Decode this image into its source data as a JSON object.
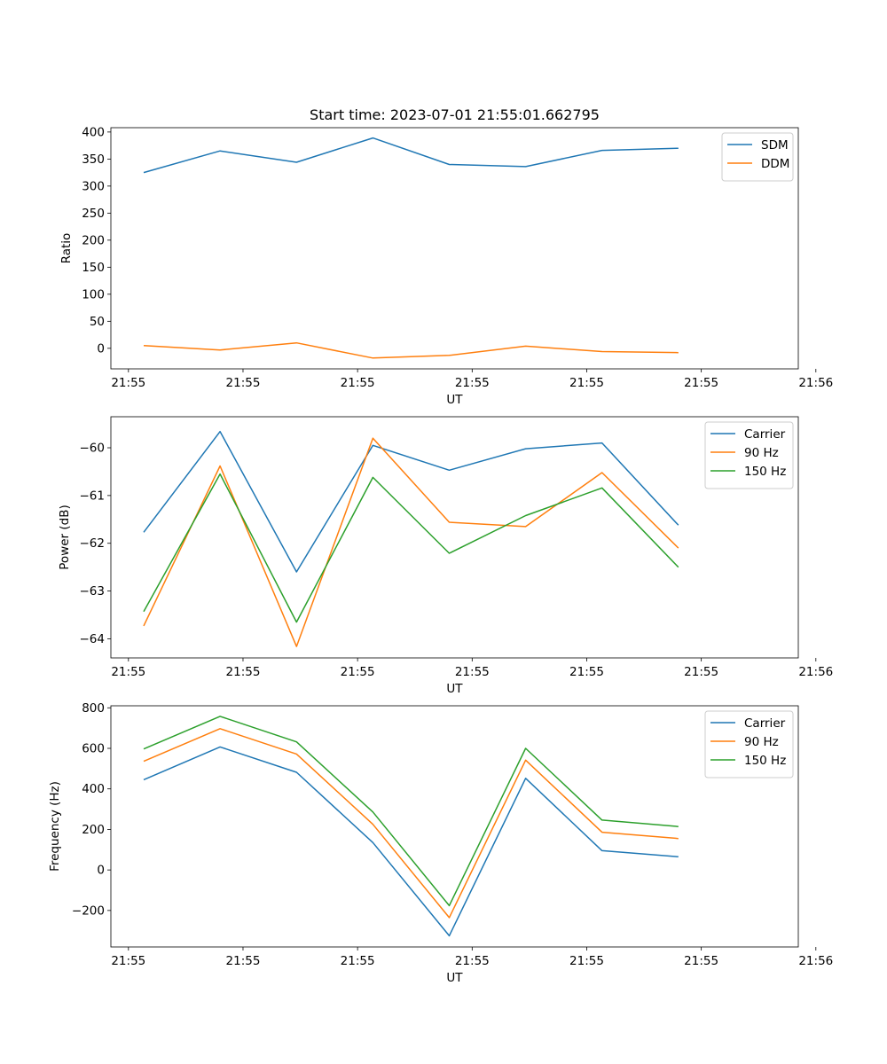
{
  "chart_data": [
    {
      "type": "line",
      "title": "Start time: 2023-07-01 21:55:01.662795",
      "xlabel": "UT",
      "ylabel": "Ratio",
      "grid": false,
      "legend_position": "top-right",
      "xlim": [
        -0.43,
        8.57
      ],
      "xticks": [
        -0.2,
        1.3,
        2.8,
        4.3,
        5.8,
        7.3,
        8.8
      ],
      "xticklabels": [
        "21:55",
        "21:55",
        "21:55",
        "21:55",
        "21:55",
        "21:55",
        "21:56"
      ],
      "ylim": [
        -38,
        408
      ],
      "yticks": [
        0,
        50,
        100,
        150,
        200,
        250,
        300,
        350,
        400
      ],
      "yticklabels": [
        "0",
        "50",
        "100",
        "150",
        "200",
        "250",
        "300",
        "350",
        "400"
      ],
      "x": [
        0,
        1,
        2,
        3,
        4,
        5,
        6,
        7
      ],
      "series": [
        {
          "name": "SDM",
          "color": "#1f77b4",
          "values": [
            325,
            365,
            344,
            389,
            340,
            336,
            366,
            370
          ]
        },
        {
          "name": "DDM",
          "color": "#ff7f0e",
          "values": [
            5,
            -3,
            10,
            -18,
            -13,
            4,
            -6,
            -8
          ]
        }
      ]
    },
    {
      "type": "line",
      "title": "",
      "xlabel": "UT",
      "ylabel": "Power (dB)",
      "grid": false,
      "legend_position": "top-right",
      "xlim": [
        -0.43,
        8.57
      ],
      "xticks": [
        -0.2,
        1.3,
        2.8,
        4.3,
        5.8,
        7.3,
        8.8
      ],
      "xticklabels": [
        "21:55",
        "21:55",
        "21:55",
        "21:55",
        "21:55",
        "21:55",
        "21:56"
      ],
      "ylim": [
        -64.4,
        -59.35
      ],
      "yticks": [
        -64,
        -63,
        -62,
        -61,
        -60
      ],
      "yticklabels": [
        "−64",
        "−63",
        "−62",
        "−61",
        "−60"
      ],
      "x": [
        0,
        1,
        2,
        3,
        4,
        5,
        6,
        7
      ],
      "series": [
        {
          "name": "Carrier",
          "color": "#1f77b4",
          "values": [
            -61.77,
            -59.66,
            -62.6,
            -59.95,
            -60.47,
            -60.02,
            -59.9,
            -61.62
          ]
        },
        {
          "name": "90 Hz",
          "color": "#ff7f0e",
          "values": [
            -63.73,
            -60.38,
            -64.16,
            -59.8,
            -61.56,
            -61.65,
            -60.52,
            -62.1
          ]
        },
        {
          "name": "150 Hz",
          "color": "#2ca02c",
          "values": [
            -63.43,
            -60.55,
            -63.65,
            -60.62,
            -62.21,
            -61.42,
            -60.84,
            -62.5
          ]
        }
      ]
    },
    {
      "type": "line",
      "title": "",
      "xlabel": "UT",
      "ylabel": "Frequency (Hz)",
      "grid": false,
      "legend_position": "top-right",
      "xlim": [
        -0.43,
        8.57
      ],
      "xticks": [
        -0.2,
        1.3,
        2.8,
        4.3,
        5.8,
        7.3,
        8.8
      ],
      "xticklabels": [
        "21:55",
        "21:55",
        "21:55",
        "21:55",
        "21:55",
        "21:55",
        "21:56"
      ],
      "ylim": [
        -380,
        810
      ],
      "yticks": [
        -200,
        0,
        200,
        400,
        600,
        800
      ],
      "yticklabels": [
        "−200",
        "0",
        "200",
        "400",
        "600",
        "800"
      ],
      "x": [
        0,
        1,
        2,
        3,
        4,
        5,
        6,
        7
      ],
      "series": [
        {
          "name": "Carrier",
          "color": "#1f77b4",
          "values": [
            445,
            607,
            482,
            135,
            -325,
            452,
            95,
            65
          ]
        },
        {
          "name": "90 Hz",
          "color": "#ff7f0e",
          "values": [
            536,
            697,
            572,
            225,
            -235,
            542,
            186,
            155
          ]
        },
        {
          "name": "150 Hz",
          "color": "#2ca02c",
          "values": [
            597,
            758,
            632,
            286,
            -176,
            600,
            246,
            214
          ]
        }
      ]
    }
  ]
}
